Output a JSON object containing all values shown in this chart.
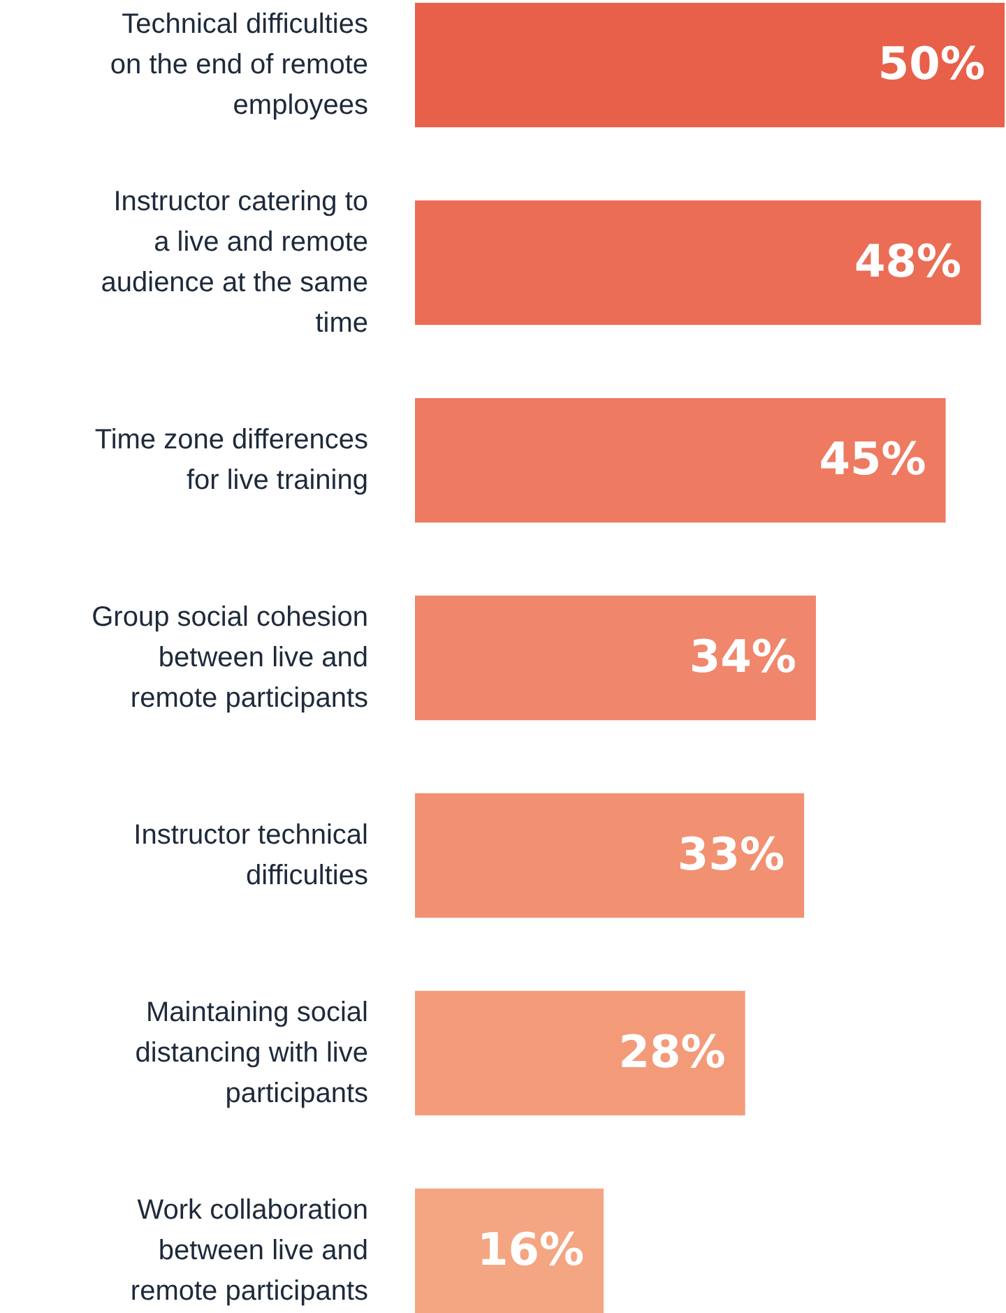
{
  "chart_data": {
    "type": "bar",
    "orientation": "horizontal",
    "categories": [
      "Technical difficulties on the end of remote employees",
      "Instructor catering to a live and remote audience at the same time",
      "Time zone differences for live training",
      "Group social cohesion between live and remote participants",
      "Instructor technical difficulties",
      "Maintaining social distancing with live participants",
      "Work collaboration between live and remote participants"
    ],
    "values": [
      50,
      48,
      45,
      34,
      33,
      28,
      16
    ],
    "value_labels": [
      "50%",
      "48%",
      "45%",
      "34%",
      "33%",
      "28%",
      "16%"
    ],
    "colors": [
      "#e8604a",
      "#eb6d55",
      "#ee7a61",
      "#f0866b",
      "#f19172",
      "#f39b79",
      "#f4a581"
    ],
    "xlim": [
      0,
      50
    ],
    "tick_labels": "y"
  }
}
